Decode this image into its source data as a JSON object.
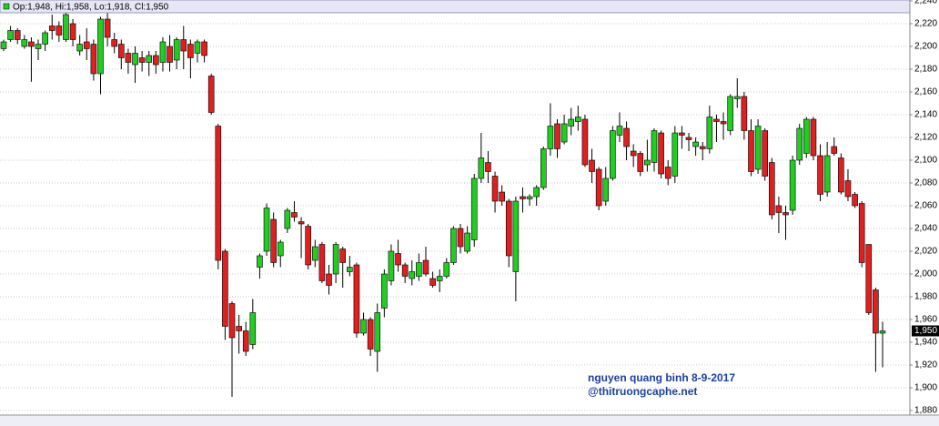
{
  "chart_data": {
    "type": "candlestick",
    "header": "Op:1,948, Hi:1,958, Lo:1,918, Cl:1,950",
    "annotations": [
      "nguyen quang binh 8-9-2017",
      "@thitruongcaphe.net"
    ],
    "up_color": "#22cc22",
    "down_color": "#dd2020",
    "grid": true,
    "ylim": [
      1880,
      2240
    ],
    "yticks": [
      {
        "value": 1880,
        "label": "1,880"
      },
      {
        "value": 1900,
        "label": "1,900"
      },
      {
        "value": 1920,
        "label": "1,920"
      },
      {
        "value": 1940,
        "label": "1,940"
      },
      {
        "value": 1960,
        "label": "1,960"
      },
      {
        "value": 1980,
        "label": "1,980"
      },
      {
        "value": 2000,
        "label": "2,000"
      },
      {
        "value": 2020,
        "label": "2,020"
      },
      {
        "value": 2040,
        "label": "2,040"
      },
      {
        "value": 2060,
        "label": "2,060"
      },
      {
        "value": 2080,
        "label": "2,080"
      },
      {
        "value": 2100,
        "label": "2,100"
      },
      {
        "value": 2120,
        "label": "2,120"
      },
      {
        "value": 2140,
        "label": "2,140"
      },
      {
        "value": 2160,
        "label": "2,160"
      },
      {
        "value": 2180,
        "label": "2,180"
      },
      {
        "value": 2200,
        "label": "2,200"
      },
      {
        "value": 2220,
        "label": "2,220"
      },
      {
        "value": 2240,
        "label": "2,240"
      }
    ],
    "last_price": {
      "value": 1950,
      "label": "1,950"
    },
    "open": [
      2198,
      2206,
      2214,
      2200,
      2204,
      2198,
      2202,
      2218,
      2218,
      2206,
      2220,
      2196,
      2204,
      2202,
      2176,
      2224,
      2206,
      2202,
      2194,
      2184,
      2190,
      2186,
      2192,
      2186,
      2200,
      2188,
      2206,
      2202,
      2194,
      2204,
      2174,
      2130,
      2020,
      1974,
      1954,
      1950,
      1938,
      2006,
      2020,
      2048,
      2016,
      2040,
      2054,
      2046,
      2042,
      2012,
      2026,
      2000,
      2000,
      2022,
      2002,
      2008,
      1948,
      1960,
      1932,
      1970,
      1994,
      2018,
      2008,
      1996,
      1998,
      2012,
      1996,
      1994,
      1998,
      2010,
      2040,
      2020,
      2030,
      2084,
      2098,
      2086,
      2072,
      2064,
      2002,
      2068,
      2066,
      2068,
      2076,
      2110,
      2132,
      2116,
      2130,
      2134,
      2136,
      2100,
      2092,
      2064,
      2084,
      2122,
      2128,
      2108,
      2106,
      2096,
      2098,
      2124,
      2094,
      2086,
      2124,
      2120,
      2112,
      2112,
      2110,
      2136,
      2134,
      2126,
      2154,
      2156,
      2126,
      2092,
      2126,
      2098,
      2060,
      2054,
      2056,
      2100,
      2106,
      2136,
      2104,
      2072,
      2112,
      2102,
      2082,
      2070,
      2062,
      2026,
      1986,
      1948
    ],
    "high": [
      2206,
      2218,
      2216,
      2210,
      2208,
      2206,
      2214,
      2228,
      2222,
      2230,
      2224,
      2210,
      2216,
      2206,
      2226,
      2230,
      2212,
      2206,
      2198,
      2200,
      2196,
      2196,
      2196,
      2208,
      2210,
      2208,
      2218,
      2206,
      2206,
      2206,
      2176,
      2132,
      2022,
      1976,
      1964,
      1958,
      1978,
      2018,
      2062,
      2054,
      2030,
      2058,
      2064,
      2050,
      2044,
      2030,
      2028,
      2008,
      2028,
      2024,
      2016,
      2010,
      1966,
      1962,
      1974,
      2004,
      2026,
      2030,
      2010,
      2012,
      2018,
      2024,
      2002,
      2004,
      2014,
      2042,
      2044,
      2042,
      2088,
      2124,
      2108,
      2090,
      2078,
      2066,
      2068,
      2076,
      2070,
      2078,
      2112,
      2150,
      2136,
      2140,
      2146,
      2148,
      2140,
      2110,
      2094,
      2094,
      2130,
      2142,
      2134,
      2114,
      2108,
      2118,
      2128,
      2126,
      2100,
      2130,
      2130,
      2124,
      2120,
      2116,
      2148,
      2140,
      2142,
      2158,
      2172,
      2160,
      2136,
      2136,
      2128,
      2102,
      2068,
      2060,
      2104,
      2132,
      2138,
      2138,
      2114,
      2116,
      2120,
      2106,
      2092,
      2072,
      2064,
      2026,
      1988,
      1958
    ],
    "low": [
      2196,
      2204,
      2202,
      2198,
      2169,
      2188,
      2196,
      2206,
      2204,
      2204,
      2200,
      2192,
      2188,
      2170,
      2158,
      2200,
      2194,
      2180,
      2176,
      2168,
      2178,
      2174,
      2176,
      2178,
      2178,
      2180,
      2180,
      2172,
      2186,
      2186,
      2140,
      2004,
      1942,
      1892,
      1930,
      1928,
      1934,
      1996,
      2016,
      2006,
      2006,
      2036,
      2046,
      2014,
      2004,
      2006,
      1992,
      1982,
      1992,
      1988,
      1998,
      1944,
      1946,
      1928,
      1914,
      1962,
      1990,
      2002,
      1992,
      1990,
      1994,
      1998,
      1988,
      1984,
      1996,
      2008,
      2018,
      2018,
      2024,
      2080,
      2080,
      2054,
      2060,
      2006,
      1976,
      2054,
      2060,
      2060,
      2074,
      2104,
      2102,
      2114,
      2122,
      2126,
      2094,
      2080,
      2056,
      2060,
      2082,
      2116,
      2100,
      2094,
      2086,
      2090,
      2090,
      2084,
      2078,
      2080,
      2110,
      2108,
      2104,
      2100,
      2106,
      2116,
      2118,
      2122,
      2146,
      2118,
      2086,
      2088,
      2082,
      2048,
      2036,
      2030,
      2052,
      2096,
      2102,
      2100,
      2064,
      2068,
      2104,
      2070,
      2064,
      2058,
      2006,
      1964,
      1914,
      1918
    ],
    "close": [
      2204,
      2214,
      2206,
      2206,
      2200,
      2202,
      2212,
      2214,
      2210,
      2228,
      2206,
      2202,
      2198,
      2176,
      2224,
      2208,
      2200,
      2190,
      2186,
      2194,
      2186,
      2192,
      2184,
      2204,
      2186,
      2206,
      2196,
      2190,
      2204,
      2192,
      2142,
      2012,
      1954,
      1944,
      1950,
      1932,
      1966,
      2016,
      2058,
      2010,
      2028,
      2056,
      2050,
      2044,
      2008,
      2024,
      1994,
      1990,
      2026,
      2010,
      2006,
      1948,
      1960,
      1934,
      1966,
      2000,
      2020,
      2008,
      1998,
      2002,
      2010,
      2000,
      1990,
      1998,
      2010,
      2040,
      2024,
      2036,
      2084,
      2102,
      2090,
      2064,
      2064,
      2016,
      2064,
      2066,
      2068,
      2076,
      2110,
      2130,
      2110,
      2132,
      2136,
      2138,
      2096,
      2090,
      2060,
      2084,
      2126,
      2130,
      2112,
      2104,
      2090,
      2100,
      2126,
      2088,
      2084,
      2124,
      2122,
      2118,
      2116,
      2110,
      2138,
      2134,
      2132,
      2156,
      2156,
      2126,
      2090,
      2130,
      2086,
      2052,
      2054,
      2052,
      2100,
      2128,
      2136,
      2104,
      2070,
      2104,
      2106,
      2072,
      2068,
      2060,
      2010,
      1966,
      1948,
      1950
    ]
  }
}
